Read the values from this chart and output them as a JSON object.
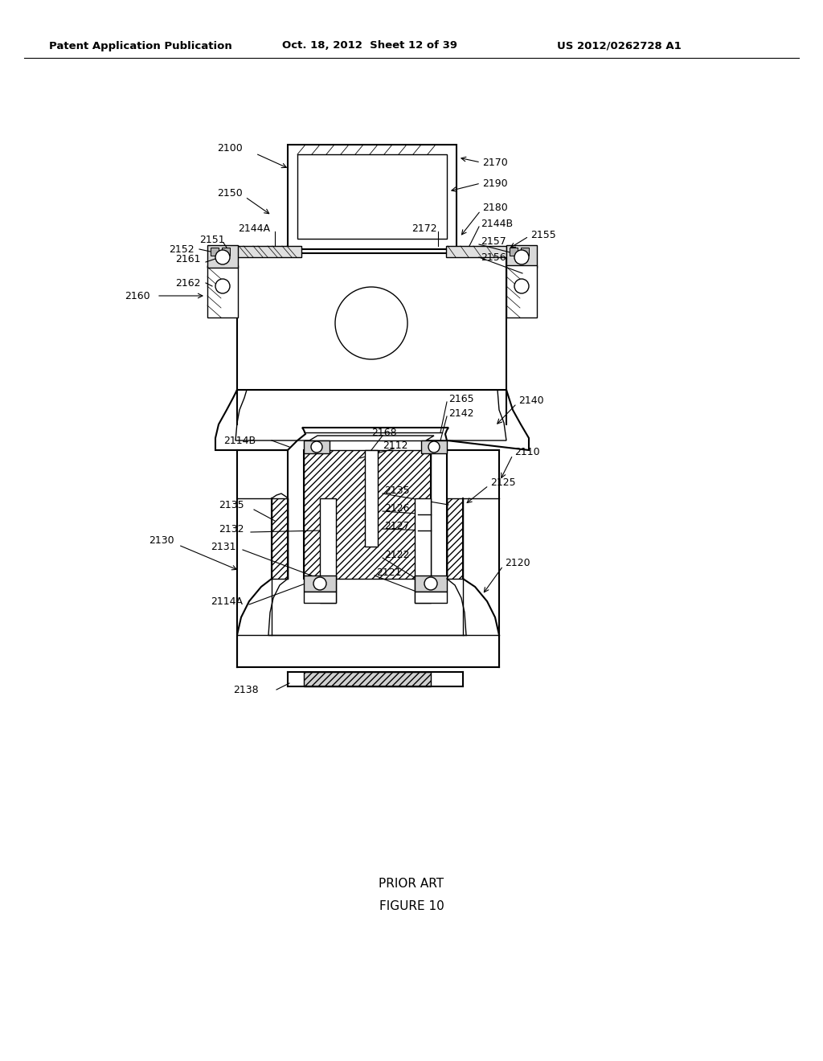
{
  "bg_color": "#ffffff",
  "header_left": "Patent Application Publication",
  "header_center": "Oct. 18, 2012  Sheet 12 of 39",
  "header_right": "US 2012/0262728 A1",
  "footer_line1": "PRIOR ART",
  "footer_line2": "FIGURE 10"
}
